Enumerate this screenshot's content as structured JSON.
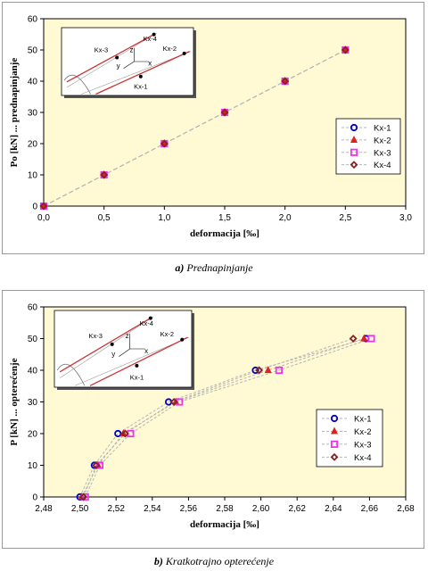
{
  "captions": [
    {
      "letter": "a)",
      "text": "Prednapinjanje"
    },
    {
      "letter": "b)",
      "text": "Kratkotrajno opterećenje"
    }
  ],
  "schematic": {
    "labels": [
      "Kx-3",
      "Kx-4",
      "Kx-2",
      "Kx-1",
      "z",
      "y",
      "x"
    ]
  },
  "colors": {
    "plot_bg": "#fffad4",
    "line_red": "#cc3333",
    "line_dashed": "#b5b5b5"
  },
  "chart_data": [
    {
      "type": "line",
      "xlabel": "deformacija [‰]",
      "ylabel": "Po  [kN]  ... prednapinjanje",
      "xlim": [
        0.0,
        3.0
      ],
      "ylim": [
        0,
        60
      ],
      "xticks": [
        "0,0",
        "0,5",
        "1,0",
        "1,5",
        "2,0",
        "2,5",
        "3,0"
      ],
      "yticks": [
        "0",
        "10",
        "20",
        "30",
        "40",
        "50",
        "60"
      ],
      "grid": false,
      "legend": "right",
      "series": [
        {
          "name": "Kx-1",
          "marker": "circle",
          "color": "#0000cc",
          "x": [
            0,
            0.5,
            1.0,
            1.5,
            2.0,
            2.5
          ],
          "y": [
            0,
            10,
            20,
            30,
            40,
            50
          ]
        },
        {
          "name": "Kx-2",
          "marker": "triangle",
          "color": "#dd2222",
          "x": [
            0,
            0.5,
            1.0,
            1.5,
            2.0,
            2.5
          ],
          "y": [
            0,
            10,
            20,
            30,
            40,
            50
          ]
        },
        {
          "name": "Kx-3",
          "marker": "square",
          "color": "#ee33ee",
          "x": [
            0,
            0.5,
            1.0,
            1.5,
            2.0,
            2.5
          ],
          "y": [
            0,
            10,
            20,
            30,
            40,
            50
          ]
        },
        {
          "name": "Kx-4",
          "marker": "diamond",
          "color": "#882222",
          "x": [
            0,
            0.5,
            1.0,
            1.5,
            2.0,
            2.5
          ],
          "y": [
            0,
            10,
            20,
            30,
            40,
            50
          ]
        }
      ]
    },
    {
      "type": "line",
      "xlabel": "deformacija [‰]",
      "ylabel": "P  [kN]  ... opterećenje",
      "xlim": [
        2.48,
        2.68
      ],
      "ylim": [
        0,
        60
      ],
      "xticks": [
        "2,48",
        "2,50",
        "2,52",
        "2,54",
        "2,56",
        "2,58",
        "2,60",
        "2,62",
        "2,64",
        "2,66",
        "2,68"
      ],
      "yticks": [
        "0",
        "10",
        "20",
        "30",
        "40",
        "50",
        "60"
      ],
      "grid": false,
      "legend": "right",
      "series": [
        {
          "name": "Kx-1",
          "marker": "circle",
          "color": "#0000cc",
          "x": [
            2.5,
            2.508,
            2.521,
            2.549,
            2.597,
            2.658
          ],
          "y": [
            0,
            10,
            20,
            30,
            40,
            50
          ]
        },
        {
          "name": "Kx-2",
          "marker": "triangle",
          "color": "#dd2222",
          "x": [
            2.501,
            2.51,
            2.524,
            2.553,
            2.604,
            2.657
          ],
          "y": [
            0,
            10,
            20,
            30,
            40,
            50
          ]
        },
        {
          "name": "Kx-3",
          "marker": "square",
          "color": "#ee33ee",
          "x": [
            2.503,
            2.511,
            2.528,
            2.555,
            2.61,
            2.661
          ],
          "y": [
            0,
            10,
            20,
            30,
            40,
            50
          ]
        },
        {
          "name": "Kx-4",
          "marker": "diamond",
          "color": "#882222",
          "x": [
            2.502,
            2.509,
            2.525,
            2.552,
            2.599,
            2.651
          ],
          "y": [
            0,
            10,
            20,
            30,
            40,
            50
          ]
        }
      ]
    }
  ]
}
